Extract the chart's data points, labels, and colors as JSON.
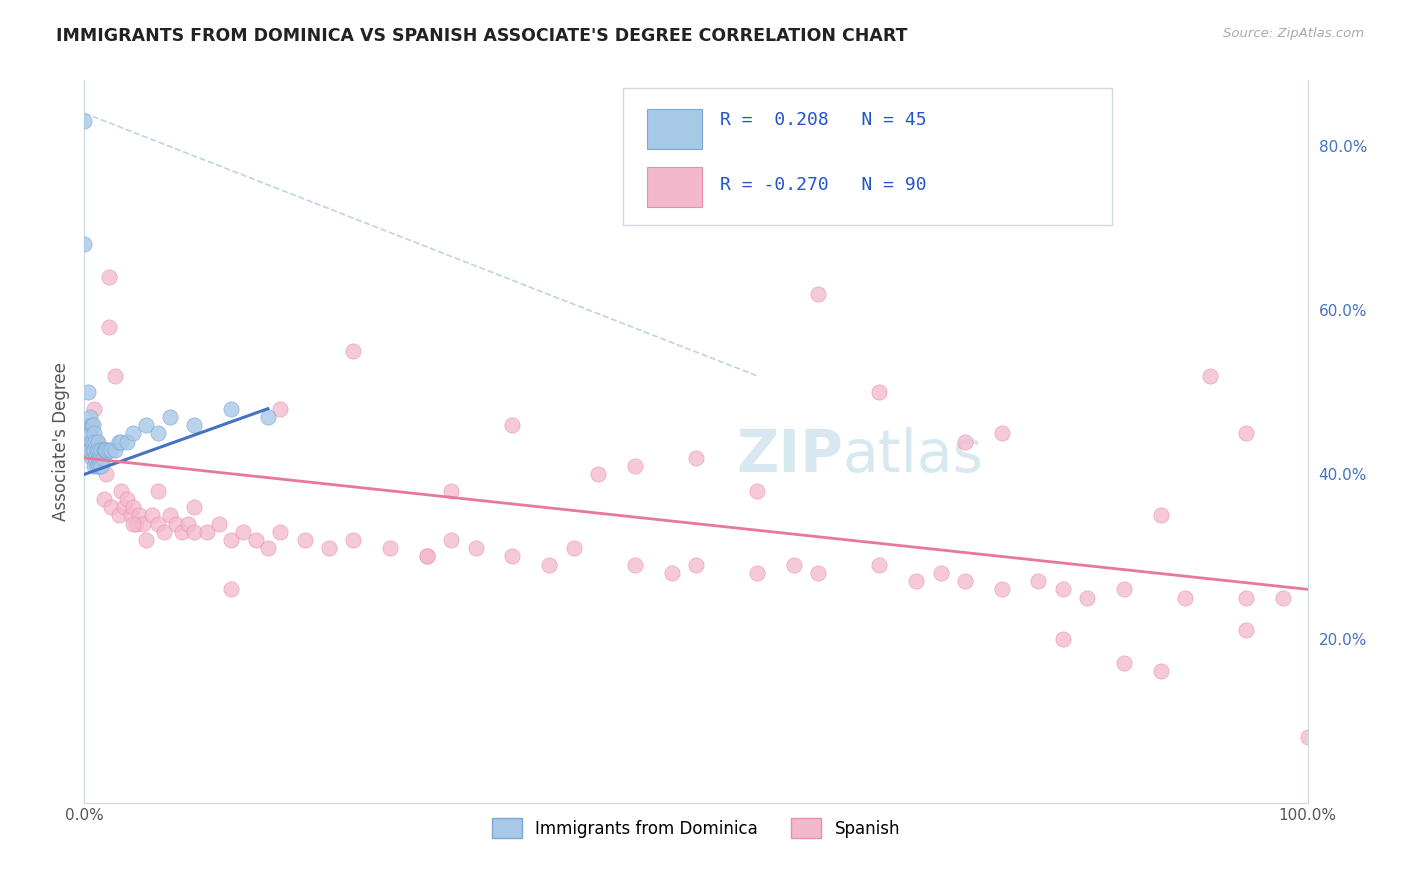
{
  "title": "IMMIGRANTS FROM DOMINICA VS SPANISH ASSOCIATE'S DEGREE CORRELATION CHART",
  "source_text": "Source: ZipAtlas.com",
  "ylabel": "Associate's Degree",
  "xlim": [
    0.0,
    1.0
  ],
  "ylim": [
    0.0,
    0.88
  ],
  "x_tick_labels": [
    "0.0%",
    "100.0%"
  ],
  "y_tick_labels_right": [
    "20.0%",
    "40.0%",
    "60.0%",
    "80.0%"
  ],
  "y_tick_vals_right": [
    0.2,
    0.4,
    0.6,
    0.8
  ],
  "legend_text": "R =  0.208   N = 45\nR = -0.270   N = 90",
  "blue_color": "#a8c8e8",
  "blue_edge": "#7aa8d0",
  "pink_color": "#f4b8cc",
  "pink_edge": "#e890a8",
  "line_blue": "#4472c4",
  "line_pink": "#e87898",
  "line_dashed": "#b0c8e0",
  "watermark_color": "#d8e8f0",
  "blue_scatter_x": [
    0.0,
    0.0,
    0.002,
    0.003,
    0.004,
    0.004,
    0.005,
    0.005,
    0.005,
    0.006,
    0.006,
    0.006,
    0.007,
    0.007,
    0.008,
    0.008,
    0.008,
    0.009,
    0.009,
    0.01,
    0.01,
    0.011,
    0.011,
    0.012,
    0.012,
    0.013,
    0.014,
    0.014,
    0.015,
    0.016,
    0.017,
    0.018,
    0.02,
    0.022,
    0.025,
    0.028,
    0.03,
    0.035,
    0.04,
    0.05,
    0.06,
    0.07,
    0.09,
    0.12,
    0.15
  ],
  "blue_scatter_y": [
    0.83,
    0.68,
    0.44,
    0.5,
    0.46,
    0.43,
    0.47,
    0.45,
    0.43,
    0.46,
    0.44,
    0.42,
    0.46,
    0.43,
    0.45,
    0.43,
    0.41,
    0.44,
    0.42,
    0.43,
    0.41,
    0.44,
    0.42,
    0.43,
    0.41,
    0.42,
    0.43,
    0.41,
    0.42,
    0.43,
    0.43,
    0.43,
    0.43,
    0.43,
    0.43,
    0.44,
    0.44,
    0.44,
    0.45,
    0.46,
    0.45,
    0.47,
    0.46,
    0.48,
    0.47
  ],
  "pink_scatter_x": [
    0.0,
    0.005,
    0.008,
    0.01,
    0.012,
    0.015,
    0.016,
    0.018,
    0.02,
    0.022,
    0.025,
    0.028,
    0.03,
    0.032,
    0.035,
    0.038,
    0.04,
    0.042,
    0.045,
    0.048,
    0.05,
    0.055,
    0.06,
    0.065,
    0.07,
    0.075,
    0.08,
    0.085,
    0.09,
    0.1,
    0.11,
    0.12,
    0.13,
    0.14,
    0.15,
    0.16,
    0.18,
    0.2,
    0.22,
    0.25,
    0.28,
    0.3,
    0.32,
    0.35,
    0.38,
    0.4,
    0.45,
    0.48,
    0.5,
    0.55,
    0.58,
    0.6,
    0.65,
    0.68,
    0.7,
    0.72,
    0.75,
    0.78,
    0.8,
    0.82,
    0.85,
    0.88,
    0.9,
    0.92,
    0.95,
    0.98,
    1.0,
    0.02,
    0.04,
    0.06,
    0.09,
    0.12,
    0.16,
    0.22,
    0.28,
    0.35,
    0.45,
    0.55,
    0.65,
    0.72,
    0.8,
    0.88,
    0.95,
    0.5,
    0.3,
    0.42,
    0.6,
    0.75,
    0.85,
    0.95
  ],
  "pink_scatter_y": [
    0.43,
    0.44,
    0.48,
    0.44,
    0.43,
    0.42,
    0.37,
    0.4,
    0.64,
    0.36,
    0.52,
    0.35,
    0.38,
    0.36,
    0.37,
    0.35,
    0.36,
    0.34,
    0.35,
    0.34,
    0.32,
    0.35,
    0.34,
    0.33,
    0.35,
    0.34,
    0.33,
    0.34,
    0.33,
    0.33,
    0.34,
    0.32,
    0.33,
    0.32,
    0.31,
    0.33,
    0.32,
    0.31,
    0.32,
    0.31,
    0.3,
    0.32,
    0.31,
    0.3,
    0.29,
    0.31,
    0.29,
    0.28,
    0.29,
    0.28,
    0.29,
    0.28,
    0.29,
    0.27,
    0.28,
    0.27,
    0.26,
    0.27,
    0.26,
    0.25,
    0.26,
    0.16,
    0.25,
    0.52,
    0.21,
    0.25,
    0.08,
    0.58,
    0.34,
    0.38,
    0.36,
    0.26,
    0.48,
    0.55,
    0.3,
    0.46,
    0.41,
    0.38,
    0.5,
    0.44,
    0.2,
    0.35,
    0.25,
    0.42,
    0.38,
    0.4,
    0.62,
    0.45,
    0.17,
    0.45
  ],
  "dashed_line_x": [
    0.0,
    0.55
  ],
  "dashed_line_y": [
    0.84,
    0.52
  ],
  "blue_trendline_x": [
    0.0,
    0.15
  ],
  "blue_trendline_y": [
    0.4,
    0.48
  ],
  "pink_trendline_x": [
    0.0,
    1.0
  ],
  "pink_trendline_y": [
    0.42,
    0.26
  ]
}
